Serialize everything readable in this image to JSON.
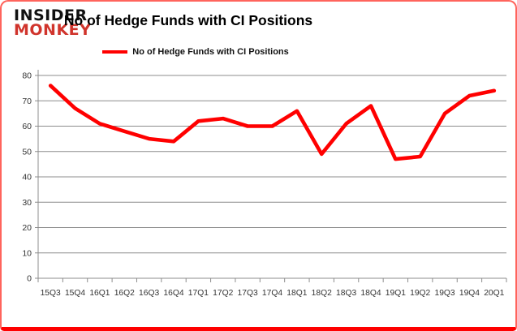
{
  "logo": {
    "line1": "INSIDER",
    "line2": "MONKEY"
  },
  "title": "No of Hedge Funds with CI Positions",
  "legend": {
    "label": "No of Hedge Funds with CI Positions"
  },
  "chart_data": {
    "type": "line",
    "title": "No of Hedge Funds with CI Positions",
    "series_name": "No of Hedge Funds with CI Positions",
    "categories": [
      "15Q3",
      "15Q4",
      "16Q1",
      "16Q2",
      "16Q3",
      "16Q4",
      "17Q1",
      "17Q2",
      "17Q3",
      "17Q4",
      "18Q1",
      "18Q2",
      "18Q3",
      "18Q4",
      "19Q1",
      "19Q2",
      "19Q3",
      "19Q4",
      "20Q1"
    ],
    "values": [
      76,
      67,
      61,
      58,
      55,
      54,
      62,
      63,
      60,
      60,
      66,
      49,
      61,
      68,
      47,
      48,
      65,
      72,
      74
    ],
    "ylim": [
      0,
      80
    ],
    "yticks": [
      0,
      10,
      20,
      30,
      40,
      50,
      60,
      70,
      80
    ],
    "grid": true,
    "legend_position": "top",
    "line_color": "#ff0000",
    "xlabel": "",
    "ylabel": ""
  },
  "colors": {
    "line": "#ff0000",
    "logo_insider": "#111111",
    "logo_monkey": "#d0342c",
    "frame_border": "#ff645c",
    "frame_bottom": "#fe0000",
    "grid": "#8c8c8c",
    "axis_text": "#333333"
  }
}
